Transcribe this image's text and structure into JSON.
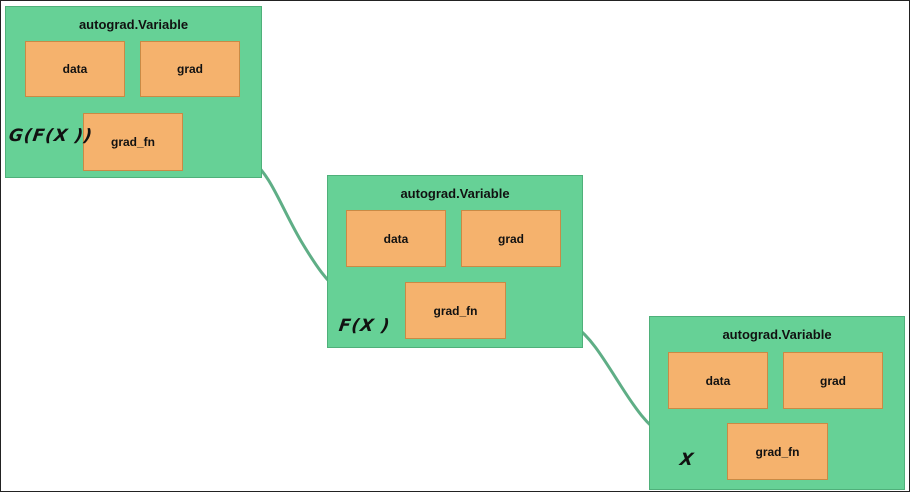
{
  "nodes": [
    {
      "title": "autograd.Variable",
      "data_label": "data",
      "grad_label": "grad",
      "grad_fn_label": "grad_fn",
      "function_label": "G(F(X ))"
    },
    {
      "title": "autograd.Variable",
      "data_label": "data",
      "grad_label": "grad",
      "grad_fn_label": "grad_fn",
      "function_label": "F(X )"
    },
    {
      "title": "autograd.Variable",
      "data_label": "data",
      "grad_label": "grad",
      "grad_fn_label": "grad_fn",
      "function_label": "X"
    }
  ],
  "colors": {
    "variable_fill": "#66d196",
    "field_fill": "#f5b26d",
    "edge": "#5fae86"
  }
}
